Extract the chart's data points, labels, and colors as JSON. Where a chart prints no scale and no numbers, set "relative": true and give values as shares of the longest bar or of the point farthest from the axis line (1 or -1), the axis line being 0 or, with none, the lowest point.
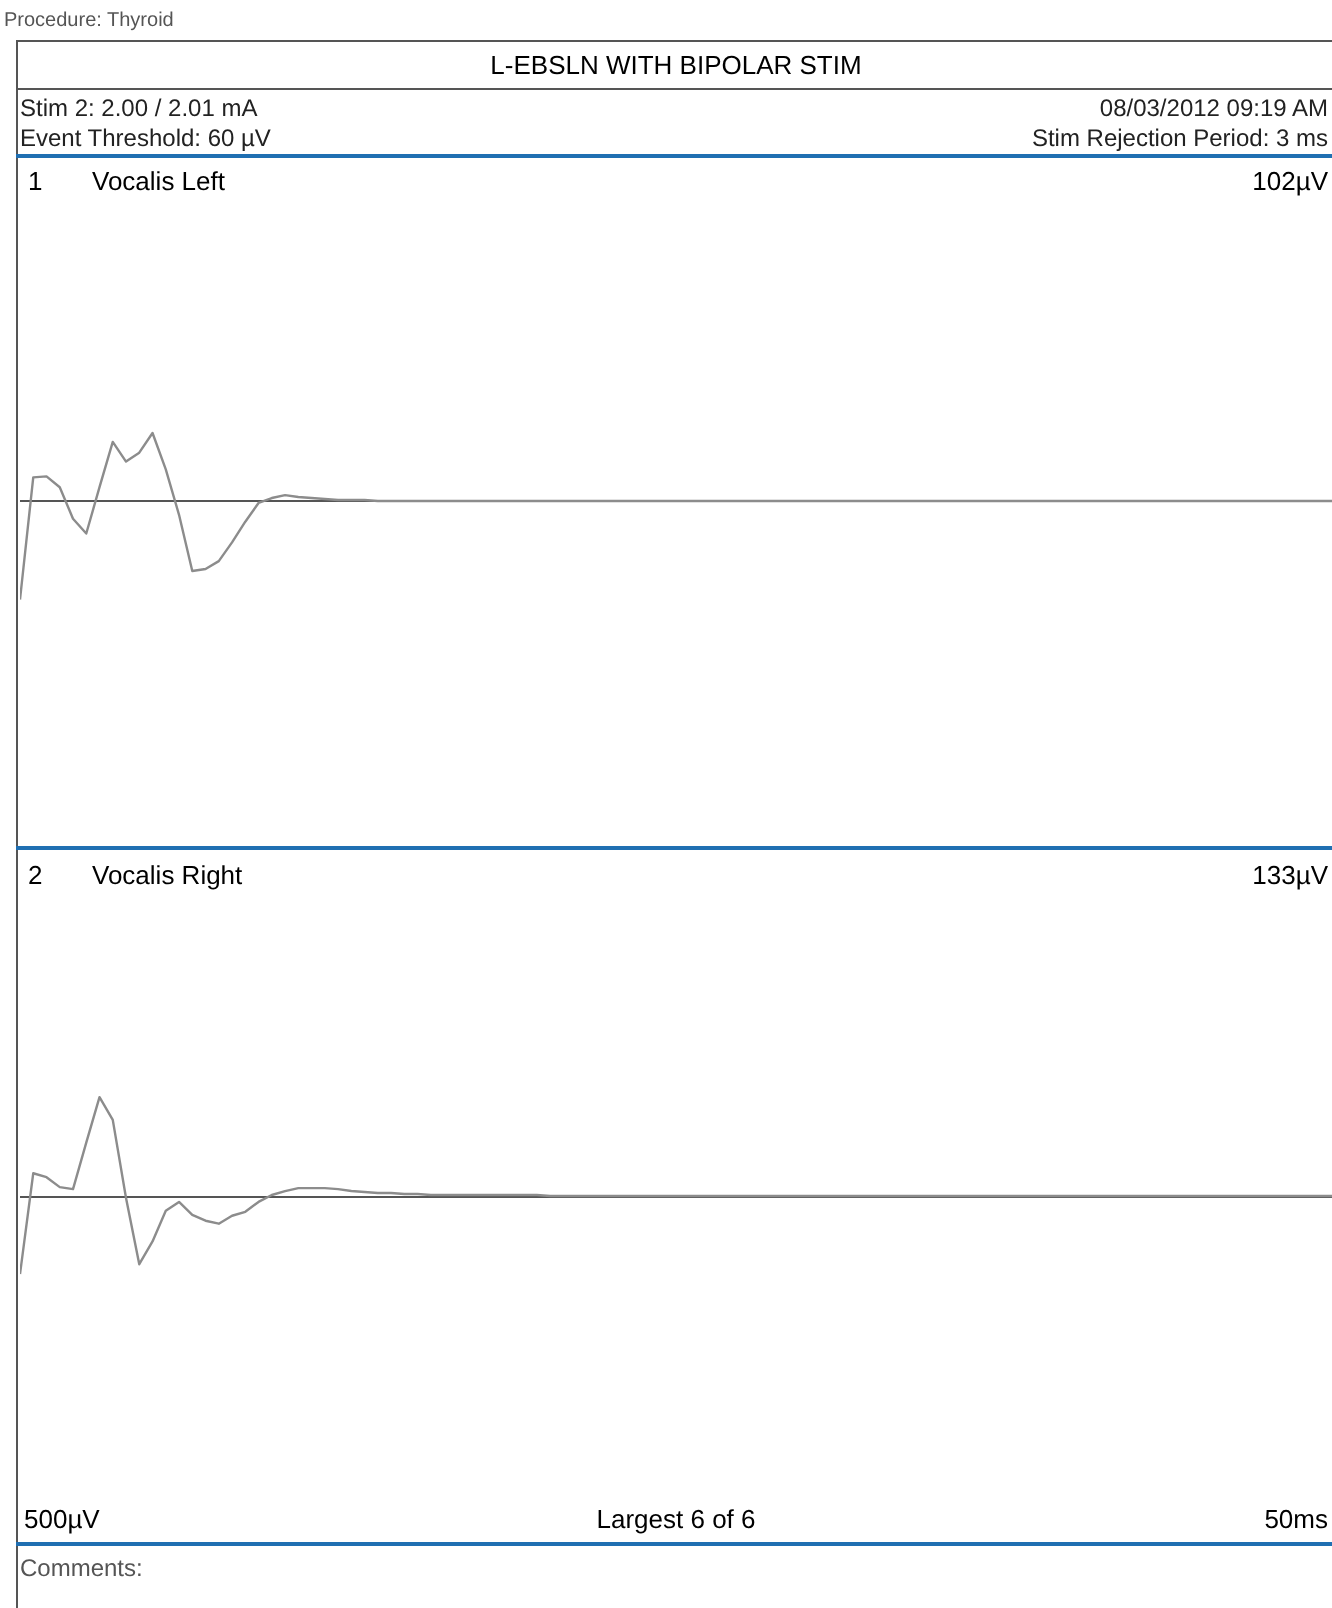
{
  "chart_data": [
    {
      "type": "line",
      "title": "L-EBSLN WITH BIPOLAR STIM",
      "subtitle": "Vocalis Left",
      "annotations": [
        "Procedure: Thyroid",
        "Stim 2: 2.00 / 2.01 mA",
        "08/03/2012 09:19 AM",
        "Event Threshold: 60 µV",
        "Stim Rejection Period: 3 ms",
        "1",
        "102µV"
      ],
      "relative": true,
      "tick_labels": false,
      "categories": [
        null,
        null,
        null,
        null,
        null,
        null,
        null,
        null,
        null,
        null,
        null,
        null,
        null,
        null,
        null,
        null,
        null,
        null,
        null,
        null,
        null,
        null,
        null,
        null,
        null,
        null,
        null,
        null,
        null,
        null,
        null,
        null,
        null,
        null,
        null,
        null,
        null,
        null,
        null,
        null,
        null,
        null,
        null,
        null,
        null,
        null,
        null,
        null,
        null,
        null,
        null,
        null,
        null,
        null,
        null,
        null,
        null,
        null,
        null,
        null,
        null,
        null,
        null,
        null,
        null,
        null,
        null,
        null,
        null,
        null,
        null,
        null,
        null,
        null,
        null,
        null,
        null,
        null,
        null,
        null,
        null,
        null,
        null,
        null,
        null,
        null,
        null,
        null,
        null,
        null,
        null,
        null,
        null,
        null,
        null,
        null,
        null,
        null,
        null,
        null
      ],
      "series": [
        {
          "color": "#8c8c8c",
          "values": [
            -1,
            0.24,
            0.25,
            0.14,
            -0.18,
            -0.33,
            0.14,
            0.6,
            0.4,
            0.49,
            0.69,
            0.32,
            -0.14,
            -0.71,
            -0.69,
            -0.61,
            -0.42,
            -0.21,
            -0.02,
            0.03,
            0.06,
            0.04,
            0.03,
            0.02,
            0.01,
            0.01,
            0.01,
            0,
            0,
            0,
            0,
            0,
            0,
            0,
            0,
            0,
            0,
            0,
            0,
            0,
            0,
            0,
            0,
            0,
            0,
            0,
            0,
            0,
            0,
            0,
            0,
            0,
            0,
            0,
            0,
            0,
            0,
            0,
            0,
            0,
            0,
            0,
            0,
            0,
            0,
            0,
            0,
            0,
            0,
            0,
            0,
            0,
            0,
            0,
            0,
            0,
            0,
            0,
            0,
            0,
            0,
            0,
            0,
            0,
            0,
            0,
            0,
            0,
            0,
            0,
            0,
            0,
            0,
            0,
            0,
            0,
            0,
            0,
            0,
            0
          ]
        }
      ]
    },
    {
      "type": "line",
      "title": "Vocalis Right",
      "annotations": [
        "2",
        "133µV",
        "500µV",
        "Largest 6 of 6",
        "50ms",
        "Comments:"
      ],
      "relative": true,
      "tick_labels": false,
      "categories": [
        null,
        null,
        null,
        null,
        null,
        null,
        null,
        null,
        null,
        null,
        null,
        null,
        null,
        null,
        null,
        null,
        null,
        null,
        null,
        null,
        null,
        null,
        null,
        null,
        null,
        null,
        null,
        null,
        null,
        null,
        null,
        null,
        null,
        null,
        null,
        null,
        null,
        null,
        null,
        null,
        null,
        null,
        null,
        null,
        null,
        null,
        null,
        null,
        null,
        null,
        null,
        null,
        null,
        null,
        null,
        null,
        null,
        null,
        null,
        null,
        null,
        null,
        null,
        null,
        null,
        null,
        null,
        null,
        null,
        null,
        null,
        null,
        null,
        null,
        null,
        null,
        null,
        null,
        null,
        null,
        null,
        null,
        null,
        null,
        null,
        null,
        null,
        null,
        null,
        null,
        null,
        null,
        null,
        null,
        null,
        null,
        null,
        null,
        null,
        null
      ],
      "series": [
        {
          "color": "#8c8c8c",
          "values": [
            -0.79,
            0.23,
            0.19,
            0.09,
            0.07,
            0.54,
            1,
            0.77,
            -0.02,
            -0.69,
            -0.46,
            -0.15,
            -0.06,
            -0.19,
            -0.25,
            -0.28,
            -0.2,
            -0.16,
            -0.06,
            0.01,
            0.05,
            0.08,
            0.08,
            0.08,
            0.07,
            0.05,
            0.04,
            0.03,
            0.03,
            0.02,
            0.02,
            0.01,
            0.01,
            0.01,
            0.01,
            0.01,
            0.01,
            0.01,
            0.01,
            0.01,
            0,
            0,
            0,
            0,
            0,
            0,
            0,
            0,
            0,
            0,
            0,
            0,
            0,
            0,
            0,
            0,
            0,
            0,
            0,
            0,
            0,
            0,
            0,
            0,
            0,
            0,
            0,
            0,
            0,
            0,
            0,
            0,
            0,
            0,
            0,
            0,
            0,
            0,
            0,
            0,
            0,
            0,
            0,
            0,
            0,
            0,
            0,
            0,
            0,
            0,
            0,
            0,
            0,
            0,
            0,
            0,
            0,
            0,
            0,
            0
          ]
        }
      ]
    }
  ]
}
